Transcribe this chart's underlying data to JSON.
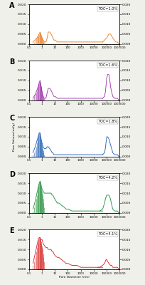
{
  "panels": [
    {
      "label": "A",
      "toc": "TOC=1.0%",
      "color": "#E8781E",
      "lp_x": [
        0.2,
        0.3,
        0.4,
        0.5,
        0.6,
        0.7,
        0.8,
        0.9,
        1.0,
        1.2,
        1.5,
        2.0,
        2.5,
        3.0,
        4.0,
        5.0,
        6.0,
        7.0,
        8.0,
        10.0,
        15.0,
        20.0,
        30.0,
        50.0,
        70.0,
        100.0,
        200.0,
        500.0,
        1000.0,
        2000.0,
        5000.0,
        10000.0,
        20000.0,
        50000.0
      ],
      "lp_y": [
        0.001,
        0.002,
        0.003,
        0.004,
        0.005,
        0.006,
        0.005,
        0.004,
        0.003,
        0.002,
        0.001,
        0.001,
        0.003,
        0.006,
        0.006,
        0.005,
        0.004,
        0.003,
        0.002,
        0.002,
        0.001,
        0.001,
        0.001,
        0.001,
        0.001,
        0.001,
        0.001,
        0.001,
        0.001,
        0.001,
        0.001,
        0.001,
        0.001,
        0.001
      ],
      "hp_x": [
        50000.0,
        70000.0,
        100000.0,
        150000.0,
        200000.0,
        250000.0,
        300000.0,
        400000.0,
        500000.0,
        700000.0,
        900000.0
      ],
      "hp_y": [
        0.001,
        0.002,
        0.003,
        0.005,
        0.005,
        0.004,
        0.003,
        0.002,
        0.001,
        0.001,
        0.0
      ],
      "bar_x": [
        0.2,
        0.25,
        0.3,
        0.35,
        0.4,
        0.45,
        0.5,
        0.55,
        0.6,
        0.65,
        0.7,
        0.75,
        0.8,
        0.85,
        0.9,
        0.95,
        1.0,
        1.1,
        1.2,
        1.3,
        1.5
      ],
      "bar_y": [
        0.001,
        0.001,
        0.002,
        0.003,
        0.003,
        0.004,
        0.004,
        0.005,
        0.005,
        0.006,
        0.006,
        0.005,
        0.005,
        0.004,
        0.004,
        0.003,
        0.003,
        0.002,
        0.002,
        0.001,
        0.001
      ]
    },
    {
      "label": "B",
      "toc": "TOC=1.6%",
      "color": "#9B2EA8",
      "lp_x": [
        0.2,
        0.3,
        0.4,
        0.5,
        0.6,
        0.7,
        0.8,
        0.9,
        1.0,
        1.2,
        1.5,
        2.0,
        2.5,
        3.0,
        4.0,
        5.0,
        6.0,
        7.0,
        8.0,
        10.0,
        15.0,
        20.0,
        30.0,
        50.0,
        70.0,
        100.0,
        200.0,
        500.0,
        1000.0,
        2000.0,
        5000.0,
        10000.0,
        20000.0,
        50000.0
      ],
      "lp_y": [
        0.001,
        0.003,
        0.005,
        0.007,
        0.009,
        0.01,
        0.008,
        0.006,
        0.004,
        0.002,
        0.001,
        0.001,
        0.004,
        0.006,
        0.006,
        0.005,
        0.004,
        0.003,
        0.002,
        0.002,
        0.001,
        0.001,
        0.001,
        0.001,
        0.001,
        0.001,
        0.001,
        0.001,
        0.001,
        0.001,
        0.001,
        0.001,
        0.001,
        0.001
      ],
      "hp_x": [
        50000.0,
        70000.0,
        80000.0,
        90000.0,
        100000.0,
        120000.0,
        150000.0,
        180000.0,
        200000.0,
        250000.0,
        300000.0,
        400000.0,
        500000.0,
        700000.0,
        900000.0
      ],
      "hp_y": [
        0.001,
        0.002,
        0.004,
        0.007,
        0.011,
        0.013,
        0.013,
        0.01,
        0.007,
        0.004,
        0.002,
        0.001,
        0.001,
        0.001,
        0.0
      ],
      "bar_x": [
        0.2,
        0.25,
        0.3,
        0.35,
        0.4,
        0.45,
        0.5,
        0.55,
        0.6,
        0.65,
        0.7,
        0.75,
        0.8,
        0.85,
        0.9,
        0.95,
        1.0,
        1.1,
        1.2,
        1.3,
        1.5
      ],
      "bar_y": [
        0.001,
        0.002,
        0.003,
        0.004,
        0.005,
        0.006,
        0.007,
        0.008,
        0.009,
        0.009,
        0.01,
        0.009,
        0.008,
        0.007,
        0.006,
        0.005,
        0.004,
        0.003,
        0.002,
        0.001,
        0.001
      ]
    },
    {
      "label": "C",
      "toc": "TOC=1.8%",
      "color": "#1A5BAF",
      "lp_x": [
        0.2,
        0.3,
        0.4,
        0.5,
        0.6,
        0.7,
        0.8,
        0.9,
        1.0,
        1.2,
        1.5,
        2.0,
        2.5,
        3.0,
        4.0,
        5.0,
        6.0,
        7.0,
        8.0,
        10.0,
        15.0,
        20.0,
        30.0,
        50.0,
        70.0,
        100.0,
        200.0,
        500.0,
        1000.0,
        2000.0,
        5000.0,
        10000.0,
        20000.0,
        50000.0
      ],
      "lp_y": [
        0.002,
        0.005,
        0.008,
        0.01,
        0.012,
        0.012,
        0.01,
        0.008,
        0.007,
        0.005,
        0.004,
        0.004,
        0.005,
        0.005,
        0.004,
        0.003,
        0.002,
        0.002,
        0.001,
        0.001,
        0.001,
        0.001,
        0.001,
        0.001,
        0.001,
        0.001,
        0.001,
        0.001,
        0.001,
        0.001,
        0.001,
        0.001,
        0.001,
        0.001
      ],
      "hp_x": [
        50000.0,
        70000.0,
        80000.0,
        90000.0,
        100000.0,
        120000.0,
        150000.0,
        200000.0,
        250000.0,
        300000.0,
        400000.0,
        500000.0,
        700000.0,
        900000.0
      ],
      "hp_y": [
        0.001,
        0.002,
        0.004,
        0.007,
        0.01,
        0.01,
        0.009,
        0.006,
        0.004,
        0.002,
        0.001,
        0.001,
        0.001,
        0.0
      ],
      "bar_x": [
        0.2,
        0.25,
        0.3,
        0.35,
        0.4,
        0.45,
        0.5,
        0.55,
        0.6,
        0.65,
        0.7,
        0.75,
        0.8,
        0.85,
        0.9,
        0.95,
        1.0,
        1.1,
        1.2,
        1.3,
        1.5
      ],
      "bar_y": [
        0.001,
        0.002,
        0.003,
        0.005,
        0.007,
        0.009,
        0.01,
        0.011,
        0.012,
        0.012,
        0.011,
        0.01,
        0.009,
        0.008,
        0.007,
        0.006,
        0.005,
        0.004,
        0.003,
        0.002,
        0.001
      ]
    },
    {
      "label": "D",
      "toc": "TOC=4.2%",
      "color": "#1A8C35",
      "lp_x": [
        0.2,
        0.3,
        0.4,
        0.5,
        0.6,
        0.7,
        0.8,
        0.9,
        1.0,
        1.2,
        1.5,
        2.0,
        2.5,
        3.0,
        4.0,
        5.0,
        6.0,
        7.0,
        8.0,
        10.0,
        15.0,
        20.0,
        30.0,
        50.0,
        70.0,
        100.0,
        200.0,
        500.0,
        1000.0,
        2000.0,
        5000.0,
        10000.0,
        20000.0,
        50000.0
      ],
      "lp_y": [
        0.002,
        0.006,
        0.01,
        0.013,
        0.015,
        0.016,
        0.015,
        0.013,
        0.012,
        0.011,
        0.01,
        0.01,
        0.01,
        0.01,
        0.01,
        0.01,
        0.009,
        0.009,
        0.008,
        0.007,
        0.005,
        0.005,
        0.004,
        0.003,
        0.002,
        0.002,
        0.001,
        0.001,
        0.001,
        0.001,
        0.001,
        0.001,
        0.001,
        0.001
      ],
      "hp_x": [
        30000.0,
        50000.0,
        70000.0,
        80000.0,
        90000.0,
        100000.0,
        120000.0,
        150000.0,
        180000.0,
        200000.0,
        250000.0,
        300000.0,
        400000.0,
        500000.0,
        700000.0,
        900000.0
      ],
      "hp_y": [
        0.001,
        0.002,
        0.005,
        0.007,
        0.008,
        0.009,
        0.009,
        0.009,
        0.008,
        0.007,
        0.004,
        0.002,
        0.001,
        0.001,
        0.001,
        0.0
      ],
      "bar_x": [
        0.2,
        0.25,
        0.3,
        0.35,
        0.4,
        0.45,
        0.5,
        0.55,
        0.6,
        0.65,
        0.7,
        0.75,
        0.8,
        0.85,
        0.9,
        0.95,
        1.0,
        1.1,
        1.2,
        1.3,
        1.5
      ],
      "bar_y": [
        0.001,
        0.003,
        0.005,
        0.007,
        0.009,
        0.011,
        0.013,
        0.014,
        0.015,
        0.016,
        0.016,
        0.015,
        0.014,
        0.013,
        0.012,
        0.011,
        0.01,
        0.009,
        0.007,
        0.005,
        0.003
      ]
    },
    {
      "label": "E",
      "toc": "TOC=5.1%",
      "color": "#D41F1F",
      "lp_x": [
        0.2,
        0.3,
        0.4,
        0.5,
        0.6,
        0.7,
        0.8,
        0.9,
        1.0,
        1.2,
        1.5,
        2.0,
        2.5,
        3.0,
        4.0,
        5.0,
        6.0,
        7.0,
        8.0,
        10.0,
        15.0,
        20.0,
        30.0,
        50.0,
        70.0,
        100.0,
        200.0,
        500.0,
        1000.0,
        2000.0,
        5000.0,
        10000.0,
        20000.0,
        50000.0
      ],
      "lp_y": [
        0.003,
        0.008,
        0.012,
        0.015,
        0.016,
        0.016,
        0.015,
        0.015,
        0.015,
        0.013,
        0.012,
        0.011,
        0.011,
        0.01,
        0.01,
        0.01,
        0.009,
        0.009,
        0.008,
        0.007,
        0.006,
        0.006,
        0.005,
        0.004,
        0.003,
        0.003,
        0.002,
        0.002,
        0.001,
        0.001,
        0.001,
        0.001,
        0.001,
        0.001
      ],
      "hp_x": [
        20000.0,
        30000.0,
        50000.0,
        70000.0,
        80000.0,
        90000.0,
        100000.0,
        120000.0,
        150000.0,
        200000.0,
        250000.0,
        300000.0,
        400000.0,
        500000.0,
        700000.0,
        900000.0
      ],
      "hp_y": [
        0.001,
        0.001,
        0.002,
        0.003,
        0.004,
        0.005,
        0.005,
        0.004,
        0.003,
        0.002,
        0.002,
        0.001,
        0.001,
        0.001,
        0.001,
        0.0
      ],
      "bar_x": [
        0.2,
        0.25,
        0.3,
        0.35,
        0.4,
        0.45,
        0.5,
        0.55,
        0.6,
        0.65,
        0.7,
        0.75,
        0.8,
        0.85,
        0.9,
        0.95,
        1.0,
        1.1,
        1.2,
        1.3,
        1.5
      ],
      "bar_y": [
        0.002,
        0.004,
        0.006,
        0.009,
        0.011,
        0.013,
        0.014,
        0.015,
        0.016,
        0.016,
        0.016,
        0.015,
        0.015,
        0.014,
        0.013,
        0.012,
        0.011,
        0.01,
        0.008,
        0.006,
        0.004
      ]
    }
  ],
  "xlabel": "Pore Diameter (nm)",
  "ylabel": "Pore Volume(ml/g)",
  "background_color": "#f0f0ea",
  "xlim": [
    0.1,
    1000000
  ],
  "ylim": [
    0,
    0.02
  ],
  "yticks": [
    0.0,
    0.005,
    0.01,
    0.015,
    0.02
  ],
  "xtick_labels": [
    "0.1",
    "1",
    "10",
    "100",
    "1000",
    "10000",
    "100000",
    "1000000"
  ],
  "xtick_vals": [
    0.1,
    1,
    10,
    100,
    1000,
    10000,
    100000,
    1000000
  ]
}
